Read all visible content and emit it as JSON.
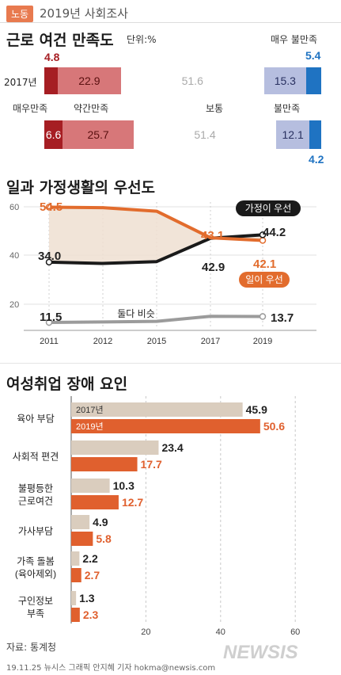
{
  "header": {
    "tag": "노동",
    "title": "2019년 사회조사"
  },
  "satisfaction": {
    "title": "근로 여건 만족도",
    "unit": "단위:%",
    "category_labels": [
      "매우 불만족",
      "매우만족",
      "약간만족",
      "보통",
      "불만족"
    ],
    "year_label": "2017년",
    "colors": [
      "#a61e23",
      "#d77779",
      "#ffffff",
      "#b6bedf",
      "#1f73c2"
    ]
  },
  "priority": {
    "title": "일과 가정생활의 우선도",
    "label_family": "가정이 우선",
    "label_work": "일이 우선",
    "label_both": "둘다 비슷",
    "y_ticks": [
      "60",
      "40",
      "20"
    ],
    "colors": {
      "family": "#1a1a1a",
      "work": "#e26c2d",
      "both": "#9b9b9b",
      "area": "#eedfd1"
    }
  },
  "obstacles": {
    "title": "여성취업 장애 요인",
    "legend": [
      "2017년",
      "2019년"
    ],
    "colors": [
      "#dacdbe",
      "#e0602e"
    ],
    "x_ticks": [
      "20",
      "40",
      "60"
    ]
  },
  "footer": {
    "source": "자료: 통계청",
    "credit": "19.11.25 뉴시스 그래픽 안지혜 기자 hokma@newsis.com",
    "watermark": "NEWSIS"
  },
  "chart_data": [
    {
      "type": "bar",
      "title": "근로 여건 만족도",
      "stacked": true,
      "orientation": "horizontal",
      "categories": [
        "2017년",
        "2019년"
      ],
      "series": [
        {
          "name": "매우만족",
          "values": [
            4.8,
            6.6
          ]
        },
        {
          "name": "약간만족",
          "values": [
            22.9,
            25.7
          ]
        },
        {
          "name": "보통",
          "values": [
            51.6,
            51.4
          ]
        },
        {
          "name": "불만족",
          "values": [
            15.3,
            12.1
          ]
        },
        {
          "name": "매우 불만족",
          "values": [
            5.4,
            4.2
          ]
        }
      ]
    },
    {
      "type": "line",
      "title": "일과 가정생활의 우선도",
      "x": [
        "2011",
        "2012",
        "2015",
        "2017",
        "2019"
      ],
      "ylim": [
        10,
        62
      ],
      "series": [
        {
          "name": "가정이 우선",
          "values": [
            54.5,
            54.3,
            53.0,
            43.1,
            42.1
          ]
        },
        {
          "name": "일이 우선",
          "values": [
            34.0,
            33.5,
            34.2,
            42.9,
            44.2
          ]
        },
        {
          "name": "둘다 비슷",
          "values": [
            11.5,
            11.7,
            11.9,
            13.8,
            13.7
          ]
        }
      ],
      "labels": {
        "family": [
          "54.5",
          "43.1",
          "42.1"
        ],
        "work": [
          "34.0",
          "42.9",
          "44.2"
        ],
        "both": [
          "11.5",
          "13.7"
        ]
      }
    },
    {
      "type": "bar",
      "title": "여성취업 장애 요인",
      "orientation": "horizontal",
      "categories": [
        "육아 부담",
        "사회적 편견",
        "불평등한\n근로여건",
        "가사부담",
        "가족 돌봄\n(육아제외)",
        "구인정보\n부족"
      ],
      "xlim": [
        0,
        60
      ],
      "series": [
        {
          "name": "2017년",
          "values": [
            45.9,
            23.4,
            10.3,
            4.9,
            2.2,
            1.3
          ]
        },
        {
          "name": "2019년",
          "values": [
            50.6,
            17.7,
            12.7,
            5.8,
            2.7,
            2.3
          ]
        }
      ]
    }
  ]
}
